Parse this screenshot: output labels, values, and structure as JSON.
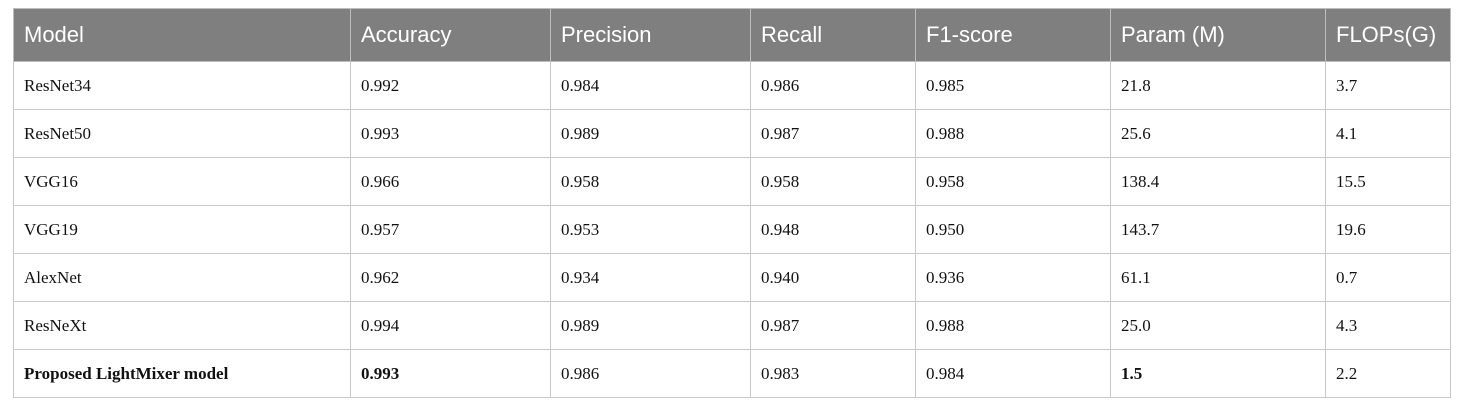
{
  "table": {
    "header": [
      "Model",
      "Accuracy",
      "Precision",
      "Recall",
      "F1-score",
      "Param (M)",
      "FLOPs(G)"
    ],
    "rows": [
      [
        "ResNet34",
        "0.992",
        "0.984",
        "0.986",
        "0.985",
        "21.8",
        "3.7"
      ],
      [
        "ResNet50",
        "0.993",
        "0.989",
        "0.987",
        "0.988",
        "25.6",
        "4.1"
      ],
      [
        "VGG16",
        "0.966",
        "0.958",
        "0.958",
        "0.958",
        "138.4",
        "15.5"
      ],
      [
        "VGG19",
        "0.957",
        "0.953",
        "0.948",
        "0.950",
        "143.7",
        "19.6"
      ],
      [
        "AlexNet",
        "0.962",
        "0.934",
        "0.940",
        "0.936",
        "61.1",
        "0.7"
      ],
      [
        "ResNeXt",
        "0.994",
        "0.989",
        "0.987",
        "0.988",
        "25.0",
        "4.3"
      ],
      [
        "Proposed LightMixer model",
        "0.993",
        "0.986",
        "0.983",
        "0.984",
        "1.5",
        "2.2"
      ]
    ]
  }
}
